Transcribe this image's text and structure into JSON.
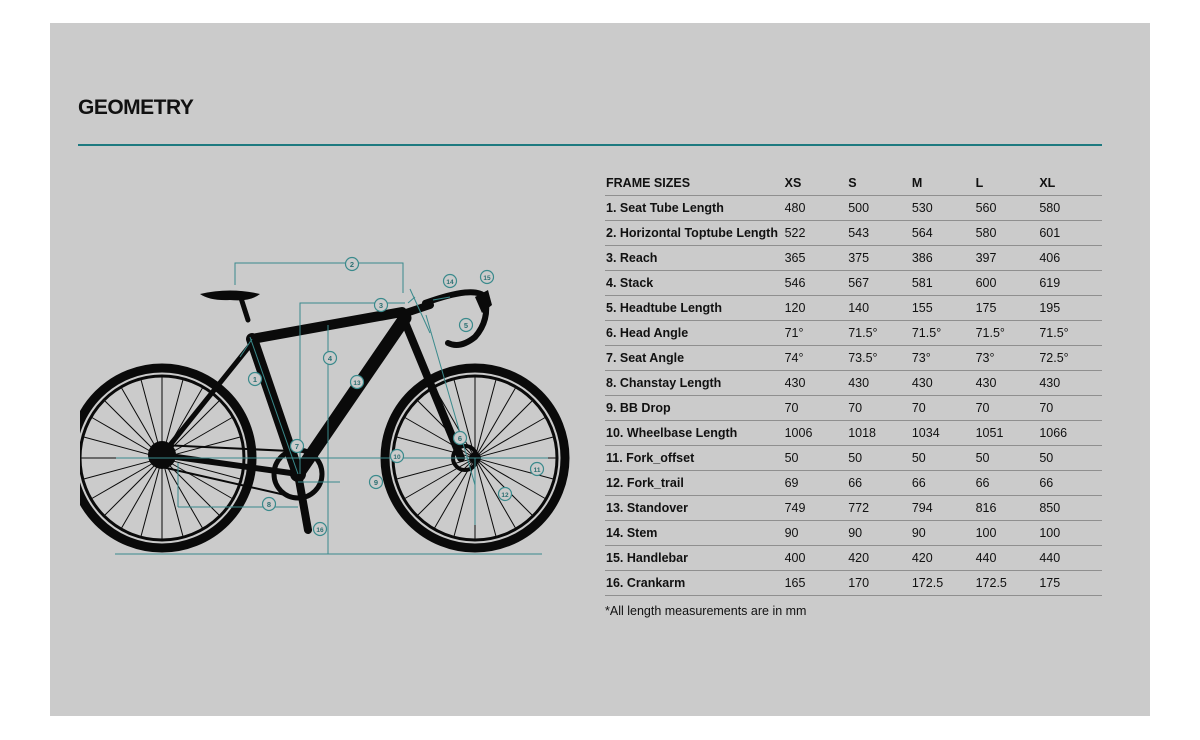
{
  "section": {
    "title": "GEOMETRY"
  },
  "table": {
    "header_label": "FRAME SIZES",
    "sizes": [
      "XS",
      "S",
      "M",
      "L",
      "XL"
    ],
    "rows": [
      {
        "label": "1. Seat Tube Length",
        "values": [
          "480",
          "500",
          "530",
          "560",
          "580"
        ]
      },
      {
        "label": "2. Horizontal Toptube Length",
        "values": [
          "522",
          "543",
          "564",
          "580",
          "601"
        ]
      },
      {
        "label": "3. Reach",
        "values": [
          "365",
          "375",
          "386",
          "397",
          "406"
        ]
      },
      {
        "label": "4. Stack",
        "values": [
          "546",
          "567",
          "581",
          "600",
          "619"
        ]
      },
      {
        "label": "5. Headtube Length",
        "values": [
          "120",
          "140",
          "155",
          "175",
          "195"
        ]
      },
      {
        "label": "6. Head Angle",
        "values": [
          "71°",
          "71.5°",
          "71.5°",
          "71.5°",
          "71.5°"
        ]
      },
      {
        "label": "7. Seat Angle",
        "values": [
          "74°",
          "73.5°",
          "73°",
          "73°",
          "72.5°"
        ]
      },
      {
        "label": "8. Chanstay Length",
        "values": [
          "430",
          "430",
          "430",
          "430",
          "430"
        ]
      },
      {
        "label": "9. BB Drop",
        "values": [
          "70",
          "70",
          "70",
          "70",
          "70"
        ]
      },
      {
        "label": "10. Wheelbase Length",
        "values": [
          "1006",
          "1018",
          "1034",
          "1051",
          "1066"
        ]
      },
      {
        "label": "11. Fork_offset",
        "values": [
          "50",
          "50",
          "50",
          "50",
          "50"
        ]
      },
      {
        "label": "12. Fork_trail",
        "values": [
          "69",
          "66",
          "66",
          "66",
          "66"
        ]
      },
      {
        "label": "13. Standover",
        "values": [
          "749",
          "772",
          "794",
          "816",
          "850"
        ]
      },
      {
        "label": "14. Stem",
        "values": [
          "90",
          "90",
          "90",
          "100",
          "100"
        ]
      },
      {
        "label": "15. Handlebar",
        "values": [
          "400",
          "420",
          "420",
          "440",
          "440"
        ]
      },
      {
        "label": "16. Crankarm",
        "values": [
          "165",
          "170",
          "172.5",
          "172.5",
          "175"
        ]
      }
    ]
  },
  "footnote": "*All length measurements are in mm",
  "diagram": {
    "marker_numbers": [
      "1",
      "2",
      "3",
      "4",
      "5",
      "6",
      "7",
      "8",
      "9",
      "10",
      "11",
      "12",
      "13",
      "14",
      "15",
      "16"
    ],
    "frame_color": "#0a0a0a",
    "line_color": "#3a8a8c"
  }
}
